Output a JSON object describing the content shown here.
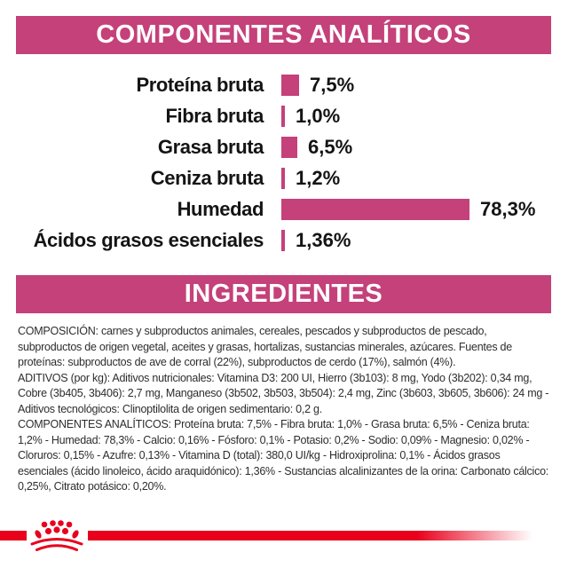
{
  "colors": {
    "accent_magenta": "#c4417a",
    "brand_red": "#e8001c",
    "text_dark": "#2d2d2d",
    "chart_text": "#141414",
    "background": "#ffffff"
  },
  "header": {
    "analytics": "COMPONENTES ANALÍTICOS",
    "ingredients": "INGREDIENTES"
  },
  "chart_data": {
    "type": "bar",
    "orientation": "horizontal",
    "title": "COMPONENTES ANALÍTICOS",
    "categories": [
      "Proteína bruta",
      "Fibra bruta",
      "Grasa bruta",
      "Ceniza bruta",
      "Humedad",
      "Ácidos grasos esenciales"
    ],
    "values": [
      7.5,
      1.0,
      6.5,
      1.2,
      78.3,
      1.36
    ],
    "value_labels": [
      "7,5%",
      "1,0%",
      "6,5%",
      "1,2%",
      "78,3%",
      "1,36%"
    ],
    "unit": "%",
    "xlim": [
      0,
      80
    ],
    "bar_color": "#c4417a",
    "grid": false,
    "legend": false,
    "value_label_position": "right-of-bar"
  },
  "ingredients_text": {
    "composition": "COMPOSICIÓN: carnes y subproductos animales, cereales, pescados y subproductos de pescado, subproductos de origen vegetal, aceites y grasas, hortalizas, sustancias minerales, azúcares. Fuentes de proteínas: subproductos de ave de corral (22%), subproductos de cerdo (17%), salmón (4%).",
    "additives": "ADITIVOS (por kg): Aditivos nutricionales: Vitamina D3: 200 UI, Hierro (3b103): 8 mg, Yodo (3b202): 0,34 mg, Cobre (3b405, 3b406): 2,7 mg, Manganeso (3b502, 3b503, 3b504): 2,4 mg, Zinc (3b603, 3b605, 3b606): 24 mg - Aditivos tecnológicos: Clinoptilolita de origen sedimentario: 0,2 g.",
    "analytical_components": "COMPONENTES ANALÍTICOS: Proteína bruta: 7,5% - Fibra bruta: 1,0% - Grasa bruta: 6,5% - Ceniza bruta: 1,2% - Humedad: 78,3% - Calcio: 0,16% - Fósforo: 0,1% - Potasio: 0,2% - Sodio: 0,09% - Magnesio: 0,02% - Cloruros: 0,15% - Azufre: 0,13% - Vitamina D (total): 380,0 UI/kg - Hidroxiprolina: 0,1% - Ácidos grasos esenciales (ácido linoleico, ácido araquidónico): 1,36% - Sustancias alcalinizantes de la orina: Carbonato cálcico: 0,25%, Citrato potásico: 0,20%.",
    "logo": "royal-canin-crown"
  }
}
